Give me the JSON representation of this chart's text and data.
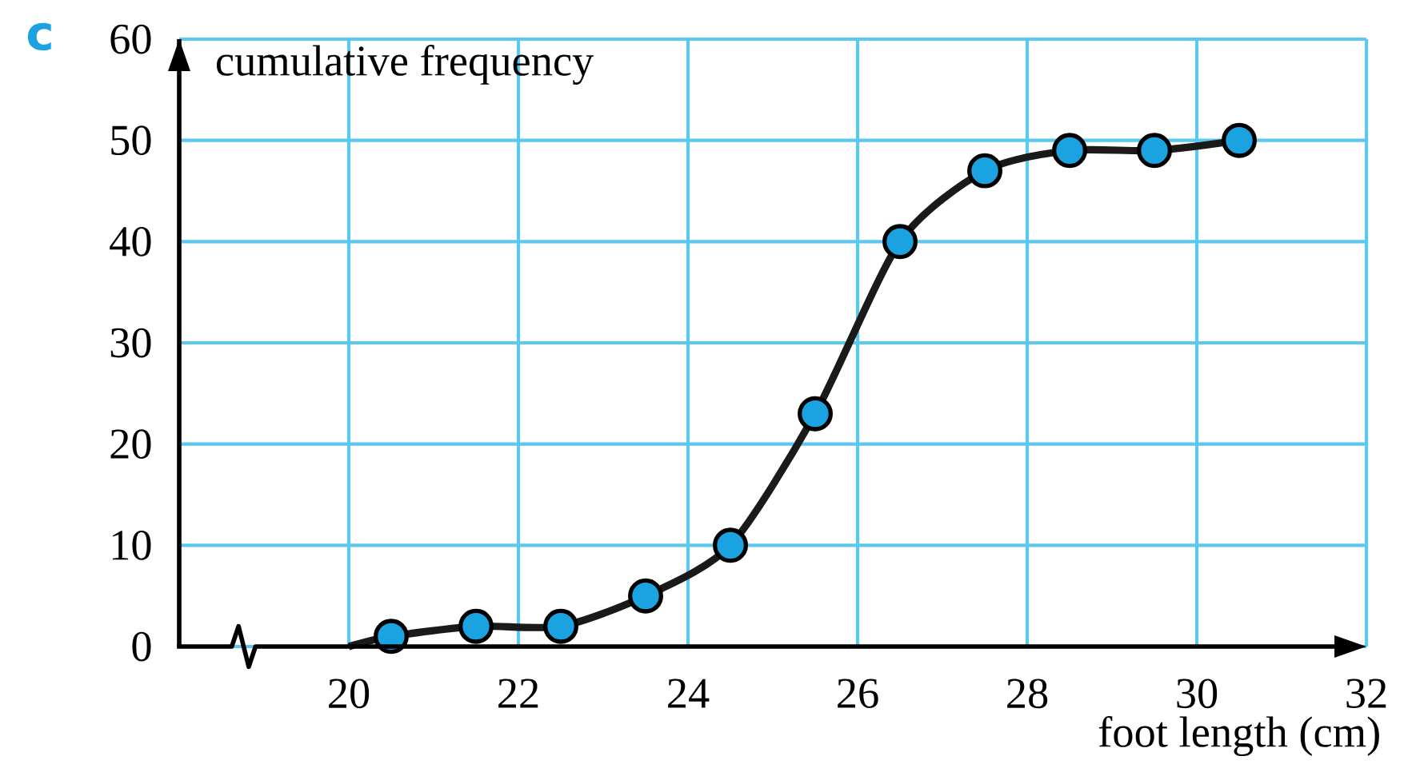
{
  "chart_data": {
    "type": "line",
    "xlabel": "foot length (cm)",
    "ylabel": "cumulative frequency",
    "annotations": [
      "c"
    ],
    "x": [
      20,
      20.5,
      21.5,
      22.5,
      23.5,
      24.5,
      25.5,
      26.5,
      27.5,
      28.5,
      29.5,
      30.5
    ],
    "series": [
      {
        "color": "#1a1a1a",
        "values": [
          0,
          1,
          2,
          2,
          5,
          10,
          23,
          40,
          47,
          49,
          49,
          50
        ]
      }
    ],
    "marker": "circle",
    "grid": true,
    "xlim": [
      18,
      32
    ],
    "ylim": [
      0,
      60
    ],
    "xticks": [
      20,
      22,
      24,
      26,
      28,
      30,
      32
    ],
    "yticks": [
      0,
      10,
      20,
      30,
      40,
      50,
      60
    ]
  }
}
